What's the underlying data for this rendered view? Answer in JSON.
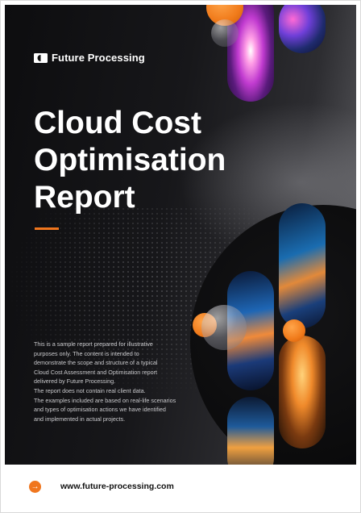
{
  "brand": {
    "name": "Future Processing",
    "accent_color": "#f0761e",
    "logo_icon": "future-processing-logo-icon"
  },
  "cover": {
    "title_lines": [
      "Cloud Cost",
      "Optimisation",
      "Report"
    ],
    "intro_lines": [
      "This is a sample report prepared for illustrative",
      "purposes only. The content is intended to",
      "demonstrate the scope and structure of a typical",
      "Cloud Cost Assessment and Optimisation report",
      "delivered by Future Processing.",
      "The report does not contain real client data.",
      "The examples included are based on real-life scenarios",
      "and types of optimisation actions we have identified",
      "and implemented in actual projects."
    ]
  },
  "footer": {
    "icon": "arrow-right-icon",
    "url": "www.future-processing.com"
  }
}
